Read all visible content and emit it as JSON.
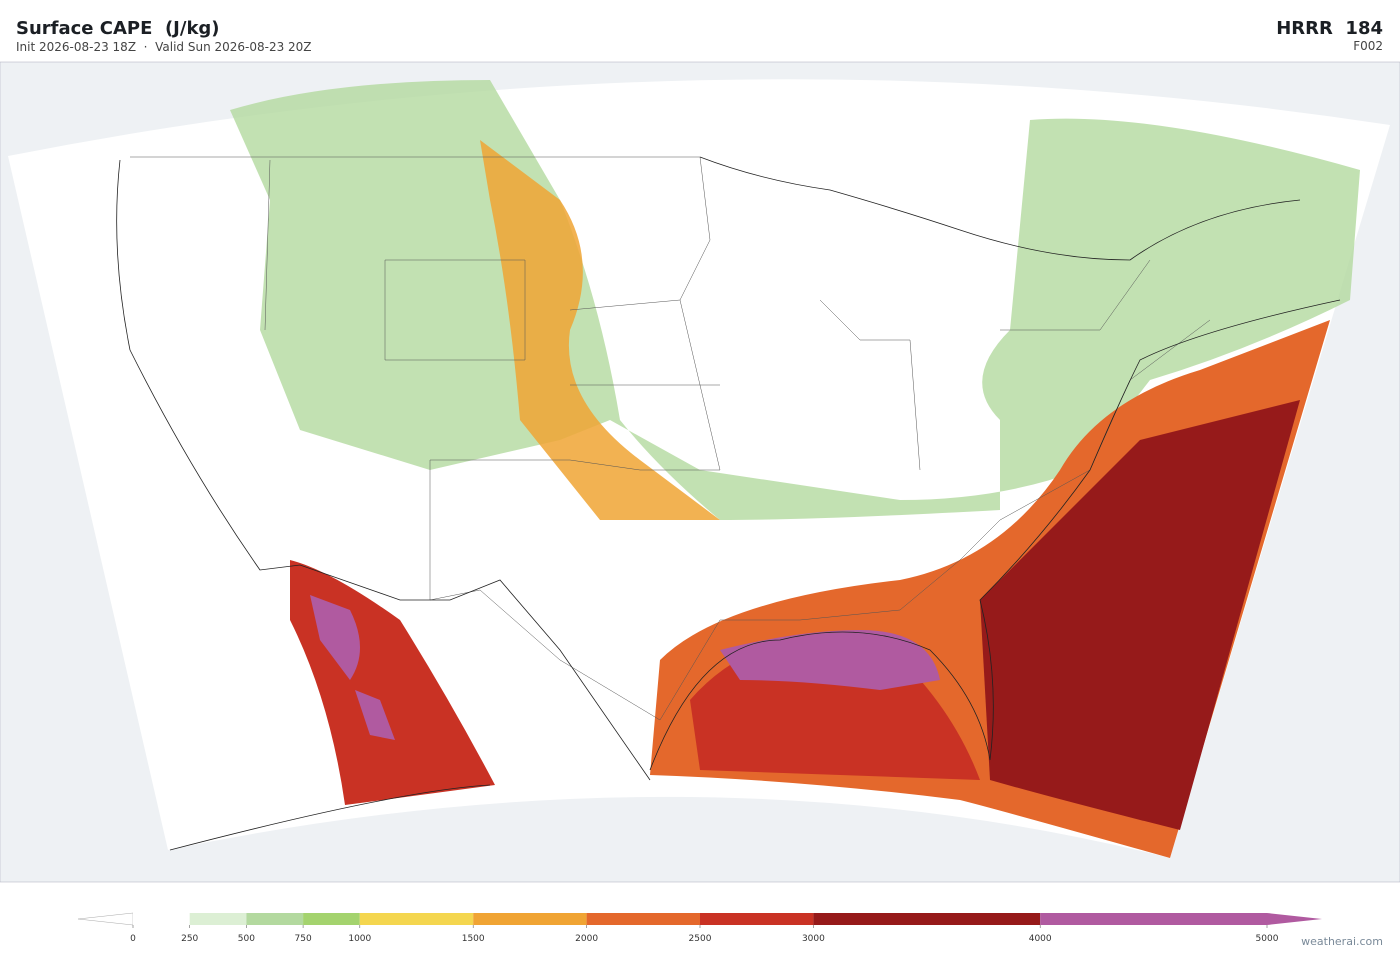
{
  "header": {
    "title": "Surface CAPE  (J/kg)",
    "subtitle": "Init 2026-08-23 18Z  ·  Valid Sun 2026-08-23 20Z",
    "model": "HRRR  184",
    "frame": "F002"
  },
  "colorbar": {
    "ticks": [
      0,
      250,
      500,
      750,
      1000,
      1500,
      2000,
      2500,
      3000,
      4000,
      5000
    ],
    "colors": [
      "#ffffff",
      "#dcefd4",
      "#b3d99f",
      "#a4d36e",
      "#f4d64f",
      "#f0a434",
      "#e4682c",
      "#c93224",
      "#961a1a",
      "#b05aa0"
    ]
  },
  "footer": {
    "watermark": "weatherai.com"
  }
}
